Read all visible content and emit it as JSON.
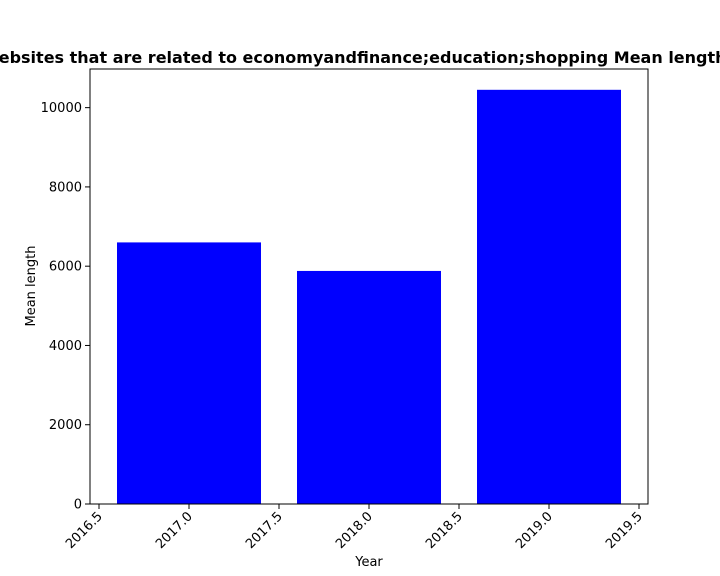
{
  "chart_data": {
    "type": "bar",
    "title": "Mean Length of Websites that are related to economyandfinance;education;shopping Mean length in privacy policies.",
    "xlabel": "Year",
    "ylabel": "Mean length",
    "x": [
      2017,
      2018,
      2019
    ],
    "values": [
      6600,
      5880,
      10450
    ],
    "bar_width": 0.8,
    "xlim": [
      2016.45,
      2019.55
    ],
    "ylim": [
      0,
      10975
    ],
    "xticks": [
      "2016.5",
      "2017.0",
      "2017.5",
      "2018.0",
      "2018.5",
      "2019.0",
      "2019.5"
    ],
    "yticks": [
      "0",
      "2000",
      "4000",
      "6000",
      "8000",
      "10000"
    ],
    "bar_color": "#0000ff",
    "grid": false,
    "legend": false
  }
}
